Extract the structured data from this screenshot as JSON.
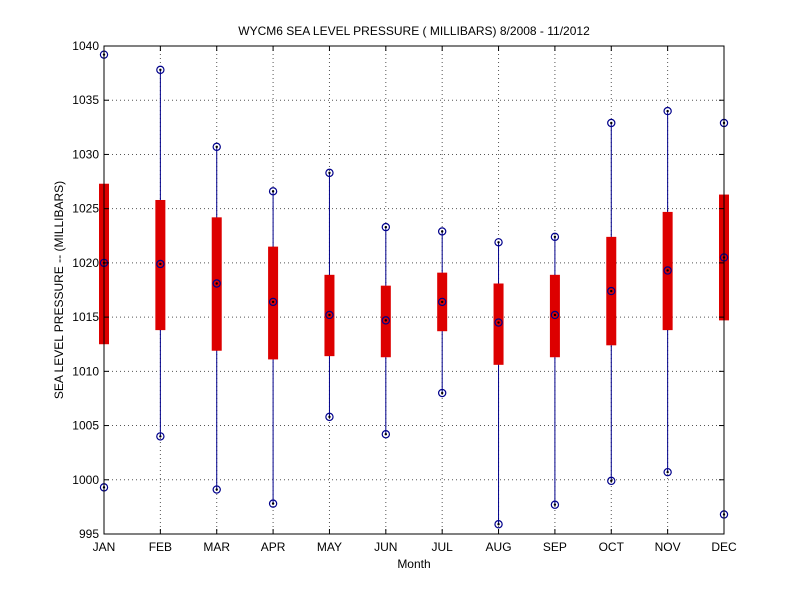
{
  "chart_data": {
    "type": "boxplot",
    "title": "WYCM6  SEA LEVEL PRESSURE ( MILLIBARS) 8/2008 - 11/2012",
    "xlabel": "Month",
    "ylabel": "SEA LEVEL PRESSURE -- (MILLIBARS)",
    "ylim": [
      995,
      1040
    ],
    "yticks": [
      995,
      1000,
      1005,
      1010,
      1015,
      1020,
      1025,
      1030,
      1035,
      1040
    ],
    "grid": true,
    "categories": [
      "JAN",
      "FEB",
      "MAR",
      "APR",
      "MAY",
      "JUN",
      "JUL",
      "AUG",
      "SEP",
      "OCT",
      "NOV",
      "DEC"
    ],
    "min": [
      999.3,
      1004.0,
      999.1,
      997.8,
      1005.8,
      1004.2,
      1008.0,
      995.9,
      997.7,
      999.9,
      1000.7,
      996.8
    ],
    "q1": [
      1012.5,
      1013.8,
      1011.9,
      1011.1,
      1011.4,
      1011.3,
      1013.7,
      1010.6,
      1011.3,
      1012.4,
      1013.8,
      1014.7
    ],
    "median": [
      1020.0,
      1019.9,
      1018.1,
      1016.4,
      1015.2,
      1014.7,
      1016.4,
      1014.5,
      1015.2,
      1017.4,
      1019.3,
      1020.5
    ],
    "q3": [
      1027.3,
      1025.8,
      1024.2,
      1021.5,
      1018.9,
      1017.9,
      1019.1,
      1018.1,
      1018.9,
      1022.4,
      1024.7,
      1026.3
    ],
    "max": [
      1039.2,
      1037.8,
      1030.7,
      1026.6,
      1028.3,
      1023.3,
      1022.9,
      1021.9,
      1022.4,
      1032.9,
      1034.0,
      1032.9
    ],
    "colors": {
      "box": "#dd0000",
      "whisker": "#00008b",
      "marker": "#00008b",
      "grid": "#555555"
    }
  }
}
